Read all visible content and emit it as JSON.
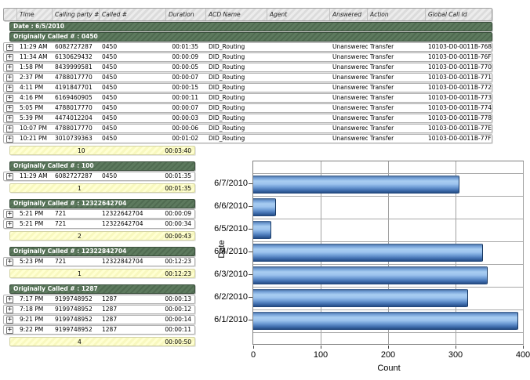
{
  "report": {
    "columns": [
      "Time",
      "Calling party #",
      "Called #",
      "Duration",
      "ACD Name",
      "Agent",
      "Answered",
      "Action",
      "Global Call Id"
    ],
    "date_label": "Date : 6/5/2010",
    "expand_icon": "+",
    "sections": [
      {
        "label": "Originally Called # : 0450",
        "full": true,
        "rows": [
          {
            "time": "11:29 AM",
            "calling": "6082727287",
            "called": "0450",
            "duration": "00:01:35",
            "acd": "DID_Routing",
            "agent": "",
            "answered": "Unanswered",
            "action": "Transfer",
            "global_call_id": "10103-D0-0011B-768"
          },
          {
            "time": "11:34 AM",
            "calling": "6130629432",
            "called": "0450",
            "duration": "00:00:09",
            "acd": "DID_Routing",
            "agent": "",
            "answered": "Unanswered",
            "action": "Transfer",
            "global_call_id": "10103-D0-0011B-76F"
          },
          {
            "time": "1:58 PM",
            "calling": "8439999581",
            "called": "0450",
            "duration": "00:00:05",
            "acd": "DID_Routing",
            "agent": "",
            "answered": "Unanswered",
            "action": "Transfer",
            "global_call_id": "10103-D0-0011B-770"
          },
          {
            "time": "2:37 PM",
            "calling": "4788017770",
            "called": "0450",
            "duration": "00:00:07",
            "acd": "DID_Routing",
            "agent": "",
            "answered": "Unanswered",
            "action": "Transfer",
            "global_call_id": "10103-D0-0011B-771"
          },
          {
            "time": "4:11 PM",
            "calling": "4191847701",
            "called": "0450",
            "duration": "00:00:15",
            "acd": "DID_Routing",
            "agent": "",
            "answered": "Unanswered",
            "action": "Transfer",
            "global_call_id": "10103-D0-0011B-772"
          },
          {
            "time": "4:16 PM",
            "calling": "6169460905",
            "called": "0450",
            "duration": "00:00:11",
            "acd": "DID_Routing",
            "agent": "",
            "answered": "Unanswered",
            "action": "Transfer",
            "global_call_id": "10103-D0-0011B-773"
          },
          {
            "time": "5:05 PM",
            "calling": "4788017770",
            "called": "0450",
            "duration": "00:00:07",
            "acd": "DID_Routing",
            "agent": "",
            "answered": "Unanswered",
            "action": "Transfer",
            "global_call_id": "10103-D0-0011B-774"
          },
          {
            "time": "5:39 PM",
            "calling": "4474012204",
            "called": "0450",
            "duration": "00:00:03",
            "acd": "DID_Routing",
            "agent": "",
            "answered": "Unanswered",
            "action": "Transfer",
            "global_call_id": "10103-D0-0011B-778"
          },
          {
            "time": "10:07 PM",
            "calling": "4788017770",
            "called": "0450",
            "duration": "00:00:06",
            "acd": "DID_Routing",
            "agent": "",
            "answered": "Unanswered",
            "action": "Transfer",
            "global_call_id": "10103-D0-0011B-77E"
          },
          {
            "time": "10:21 PM",
            "calling": "3010739363",
            "called": "0450",
            "duration": "00:01:02",
            "acd": "DID_Routing",
            "agent": "",
            "answered": "Unanswered",
            "action": "Transfer",
            "global_call_id": "10103-D0-0011B-77F"
          }
        ],
        "summary": {
          "count": "10",
          "duration": "00:03:40"
        }
      },
      {
        "label": "Originally Called # : 100",
        "full": false,
        "rows": [
          {
            "time": "11:29 AM",
            "calling": "6082727287",
            "called": "0450",
            "duration": "00:01:35"
          }
        ],
        "summary": {
          "count": "1",
          "duration": "00:01:35"
        }
      },
      {
        "label": "Originally Called # : 12322642704",
        "full": false,
        "rows": [
          {
            "time": "5:21 PM",
            "calling": "721",
            "called": "12322642704",
            "duration": "00:00:09"
          },
          {
            "time": "5:21 PM",
            "calling": "721",
            "called": "12322642704",
            "duration": "00:00:34"
          }
        ],
        "summary": {
          "count": "2",
          "duration": "00:00:43"
        }
      },
      {
        "label": "Originally Called # : 12322842704",
        "full": false,
        "rows": [
          {
            "time": "5:23 PM",
            "calling": "721",
            "called": "12322842704",
            "duration": "00:12:23"
          }
        ],
        "summary": {
          "count": "1",
          "duration": "00:12:23"
        }
      },
      {
        "label": "Originally Called # : 1287",
        "full": false,
        "rows": [
          {
            "time": "7:17 PM",
            "calling": "9199748952",
            "called": "1287",
            "duration": "00:00:13"
          },
          {
            "time": "7:18 PM",
            "calling": "9199748952",
            "called": "1287",
            "duration": "00:00:12"
          },
          {
            "time": "9:21 PM",
            "calling": "9199748952",
            "called": "1287",
            "duration": "00:00:14"
          },
          {
            "time": "9:22 PM",
            "calling": "9199748952",
            "called": "1287",
            "duration": "00:00:11"
          }
        ],
        "summary": {
          "count": "4",
          "duration": "00:00:50"
        }
      }
    ]
  },
  "chart_data": {
    "type": "bar",
    "orientation": "horizontal",
    "title": "",
    "categories": [
      "6/7/2010",
      "6/6/2010",
      "6/5/2010",
      "6/4/2010",
      "6/3/2010",
      "6/2/2010",
      "6/1/2010"
    ],
    "values": [
      305,
      32,
      26,
      340,
      347,
      318,
      392
    ],
    "xlabel": "Count",
    "ylabel": "Date",
    "xlim": [
      0,
      400
    ],
    "xticks": [
      0,
      100,
      200,
      300,
      400
    ],
    "grid": true,
    "legend_position": "none",
    "bar_colors": {
      "light": "#a8cdf2",
      "mid": "#5e8ecd",
      "dark": "#1d4176"
    }
  },
  "colors": {
    "group_header_bg": "#52704f",
    "summary_bg": "#ffffcc",
    "column_header_bg": "#dcdcdc",
    "grid_line": "#a0a0a0"
  }
}
